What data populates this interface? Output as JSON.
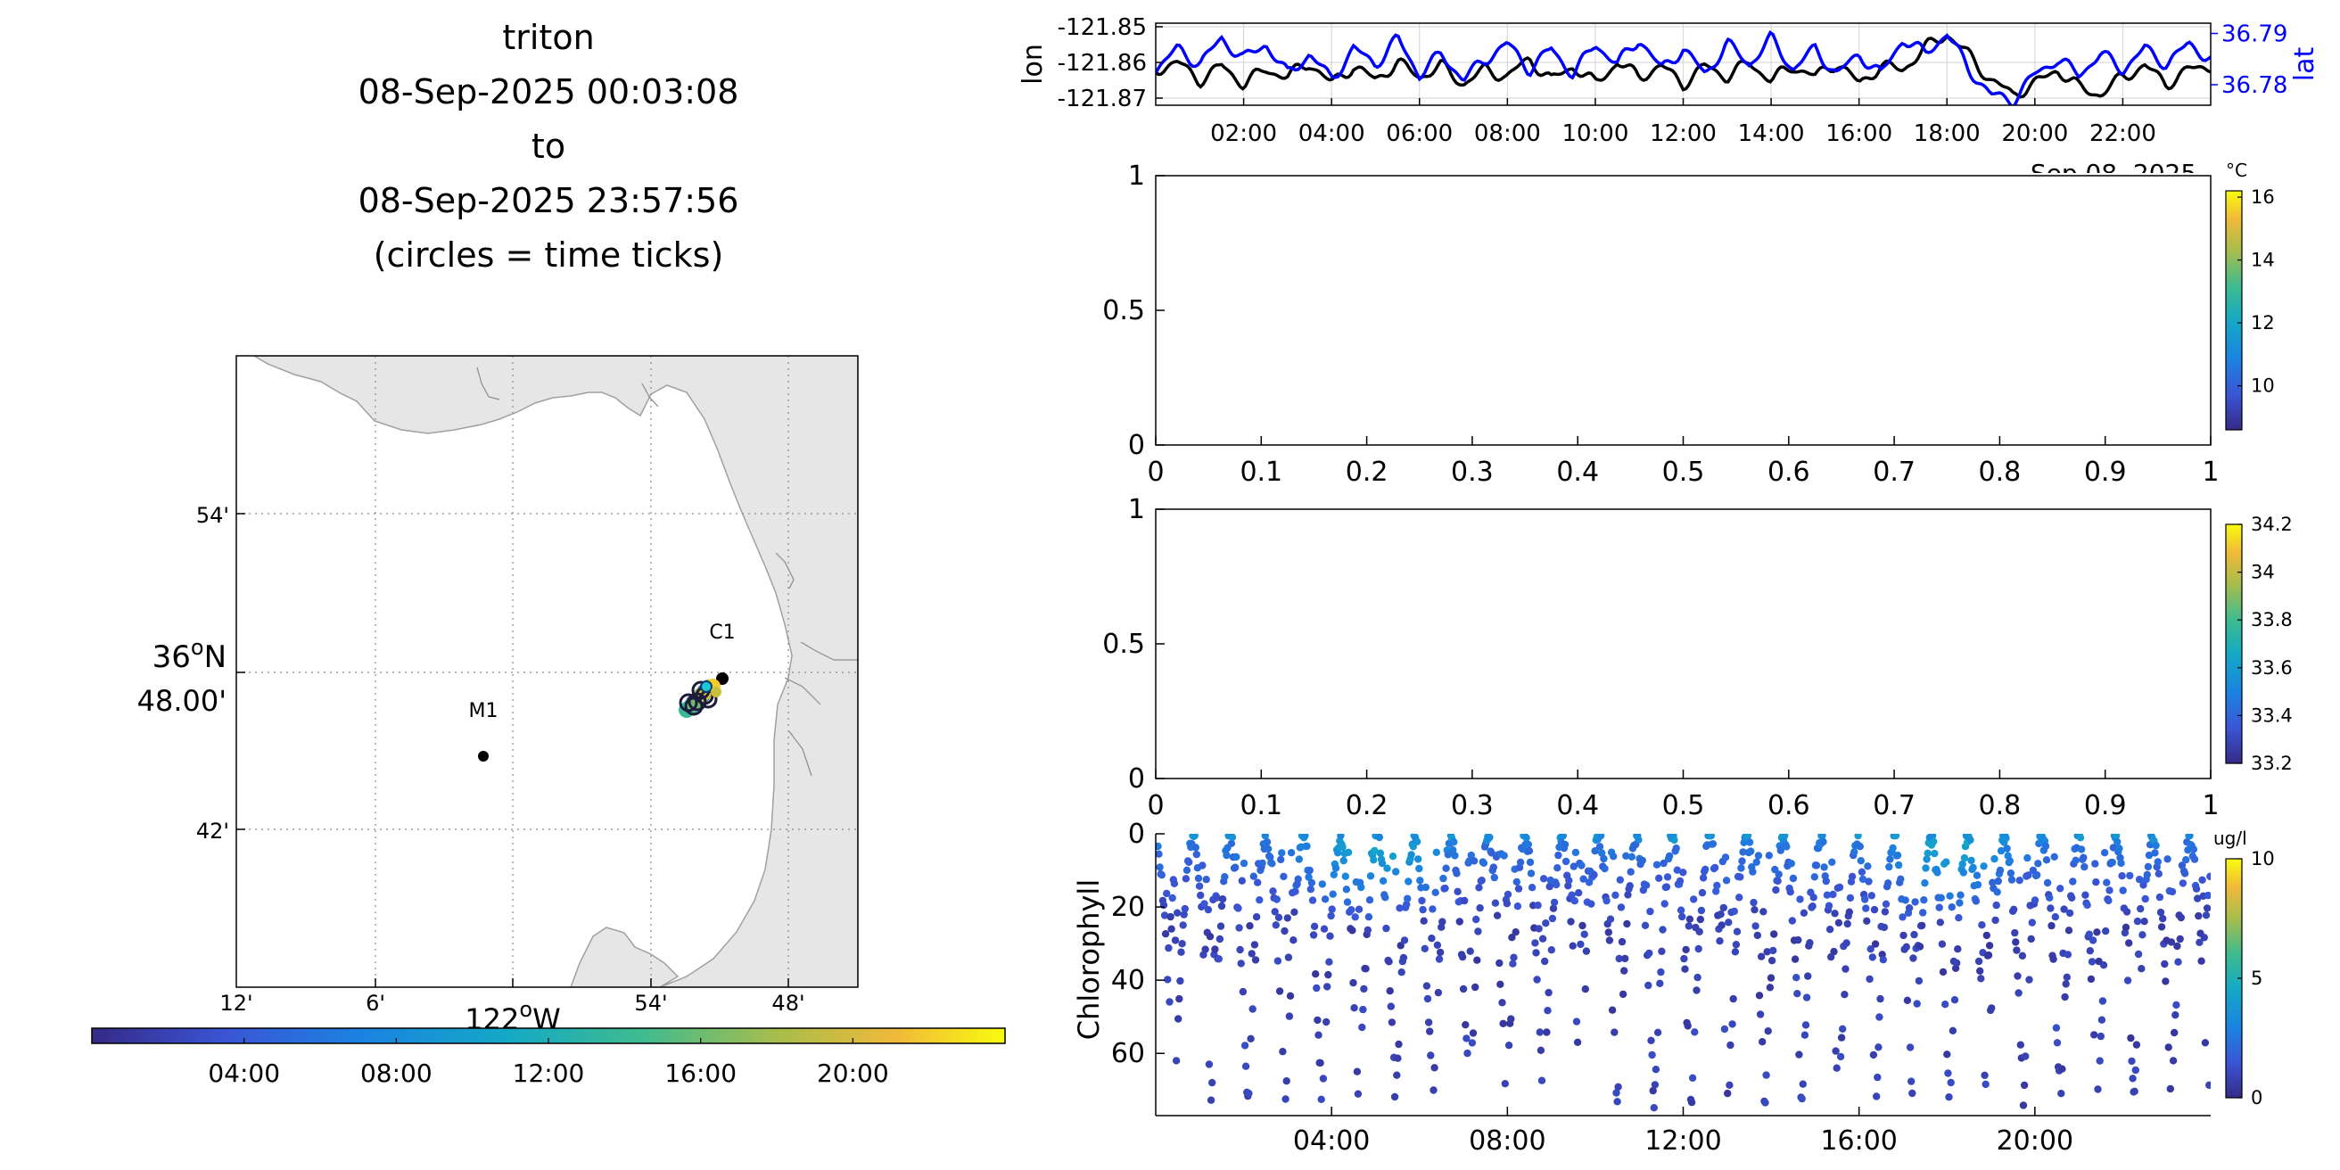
{
  "title": {
    "vehicle": "triton",
    "start": "08-Sep-2025 00:03:08",
    "to": "to",
    "end": "08-Sep-2025 23:57:56",
    "note": "(circles = time ticks)"
  },
  "map": {
    "lat_ticks": [
      "54'",
      "42'"
    ],
    "lat_center_deg": "36",
    "lat_center_unit": "o",
    "lat_center_hem": "N",
    "lat_center_min": "48.00'",
    "lon_ticks": [
      "12'",
      "6'",
      "54'",
      "48'"
    ],
    "lon_center_deg": "122",
    "lon_center_unit": "o",
    "lon_center_hem": "W",
    "stations": [
      {
        "name": "C1"
      },
      {
        "name": "M1"
      }
    ],
    "colors": {
      "land": "#e6e6e6",
      "coast": "#a0a0a0",
      "grid": "#8a8a8a",
      "station": "#000000"
    }
  },
  "time_colorbar": {
    "labels": [
      "04:00",
      "08:00",
      "12:00",
      "16:00",
      "20:00"
    ]
  },
  "chart_data": [
    {
      "type": "line",
      "ylabel_left": "lon",
      "ylabel_right": "lat",
      "left_ticks": [
        "-121.85",
        "-121.86",
        "-121.87"
      ],
      "right_ticks": [
        "36.79",
        "36.78"
      ],
      "x_ticks": [
        "02:00",
        "04:00",
        "06:00",
        "08:00",
        "10:00",
        "12:00",
        "14:00",
        "16:00",
        "18:00",
        "20:00",
        "22:00"
      ],
      "x_date_label": "Sep 08, 2025",
      "xlim_hours": [
        0,
        24
      ],
      "ylim_left": [
        -121.872,
        -121.849
      ],
      "ylim_right": [
        36.776,
        36.792
      ],
      "series": [
        {
          "name": "lon",
          "color": "#000000",
          "x": [
            0,
            0.5,
            1,
            1.5,
            2,
            2.5,
            3,
            3.5,
            4,
            4.5,
            5,
            5.5,
            6,
            6.5,
            7,
            7.5,
            8,
            8.5,
            9,
            9.5,
            10,
            10.5,
            11,
            11.5,
            12,
            12.5,
            13,
            13.5,
            14,
            14.5,
            15,
            15.5,
            16,
            16.5,
            17,
            17.5,
            18,
            18.5,
            19,
            19.5,
            20,
            20.5,
            21,
            21.5,
            22,
            22.5,
            23,
            23.5,
            24
          ],
          "y": [
            -121.862,
            -121.86,
            -121.865,
            -121.861,
            -121.866,
            -121.862,
            -121.864,
            -121.86,
            -121.866,
            -121.861,
            -121.865,
            -121.86,
            -121.864,
            -121.861,
            -121.866,
            -121.862,
            -121.864,
            -121.859,
            -121.865,
            -121.861,
            -121.866,
            -121.86,
            -121.864,
            -121.861,
            -121.866,
            -121.861,
            -121.864,
            -121.86,
            -121.865,
            -121.861,
            -121.864,
            -121.86,
            -121.866,
            -121.861,
            -121.862,
            -121.856,
            -121.852,
            -121.858,
            -121.865,
            -121.869,
            -121.866,
            -121.862,
            -121.867,
            -121.869,
            -121.864,
            -121.861,
            -121.866,
            -121.862,
            -121.861
          ]
        },
        {
          "name": "lat",
          "color": "#0000ff",
          "x": [
            0,
            0.5,
            1,
            1.5,
            2,
            2.5,
            3,
            3.5,
            4,
            4.5,
            5,
            5.5,
            6,
            6.5,
            7,
            7.5,
            8,
            8.5,
            9,
            9.5,
            10,
            10.5,
            11,
            11.5,
            12,
            12.5,
            13,
            13.5,
            14,
            14.5,
            15,
            15.5,
            16,
            16.5,
            17,
            17.5,
            18,
            18.5,
            19,
            19.5,
            20,
            20.5,
            21,
            21.5,
            22,
            22.5,
            23,
            23.5,
            24
          ],
          "y": [
            36.783,
            36.787,
            36.784,
            36.789,
            36.785,
            36.788,
            36.782,
            36.786,
            36.781,
            36.787,
            36.784,
            36.789,
            36.782,
            36.786,
            36.781,
            36.785,
            36.788,
            36.783,
            36.787,
            36.782,
            36.788,
            36.784,
            36.789,
            36.783,
            36.787,
            36.782,
            36.788,
            36.784,
            36.789,
            36.783,
            36.787,
            36.782,
            36.786,
            36.782,
            36.789,
            36.786,
            36.79,
            36.783,
            36.778,
            36.777,
            36.782,
            36.785,
            36.782,
            36.786,
            36.783,
            36.787,
            36.784,
            36.788,
            36.785
          ]
        }
      ]
    },
    {
      "type": "scatter",
      "y_ticks": [
        "1",
        "0.5",
        "0"
      ],
      "x_ticks": [
        "0",
        "0.1",
        "0.2",
        "0.3",
        "0.4",
        "0.5",
        "0.6",
        "0.7",
        "0.8",
        "0.9",
        "1"
      ],
      "xlim": [
        0,
        1
      ],
      "ylim": [
        0,
        1
      ],
      "colorbar_unit": "°C",
      "colorbar_ticks": [
        "16",
        "14",
        "12",
        "10"
      ],
      "colorbar_range": [
        8.6,
        16.2
      ]
    },
    {
      "type": "scatter",
      "y_ticks": [
        "1",
        "0.5",
        "0"
      ],
      "x_ticks": [
        "0",
        "0.1",
        "0.2",
        "0.3",
        "0.4",
        "0.5",
        "0.6",
        "0.7",
        "0.8",
        "0.9",
        "1"
      ],
      "xlim": [
        0,
        1
      ],
      "ylim": [
        0,
        1
      ],
      "colorbar_ticks": [
        "34.2",
        "34",
        "33.8",
        "33.6",
        "33.4",
        "33.2"
      ],
      "colorbar_range": [
        33.2,
        34.2
      ]
    },
    {
      "type": "scatter",
      "ylabel": "Chlorophyll",
      "y_ticks": [
        "0",
        "20",
        "40",
        "60"
      ],
      "x_ticks": [
        "04:00",
        "08:00",
        "12:00",
        "16:00",
        "20:00"
      ],
      "xlim_hours": [
        0,
        24
      ],
      "ylim": [
        0,
        77
      ],
      "colorbar_unit": "ug/l",
      "colorbar_ticks": [
        "10",
        "5",
        "0"
      ],
      "colorbar_range": [
        0,
        10
      ],
      "yo_cycle_hours": 0.84,
      "depth_range_m": [
        0,
        75
      ]
    }
  ]
}
